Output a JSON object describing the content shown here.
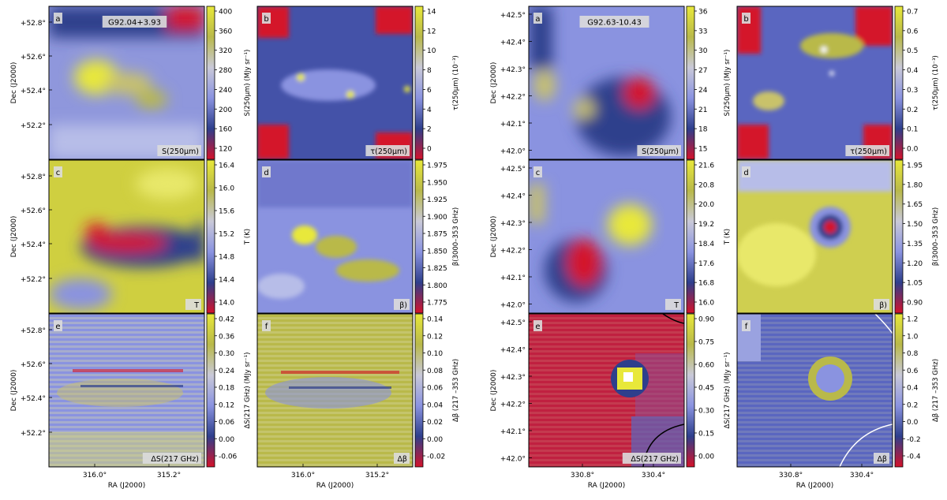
{
  "figure": {
    "groups": [
      {
        "title": "G92.04+3.93",
        "xlabel": "RA (J2000)",
        "ylabel": "Dec (J2000)",
        "xticks": [
          "316.0°",
          "315.2°"
        ],
        "yticks": [
          "+52.8°",
          "+52.6°",
          "+52.4°",
          "+52.2°"
        ]
      },
      {
        "title": "G92.63-10.43",
        "xlabel": "RA (J2000)",
        "ylabel": "Dec (J2000)",
        "xticks": [
          "330.8°",
          "330.4°"
        ],
        "yticks": [
          "+42.5°",
          "+42.4°",
          "+42.3°",
          "+42.2°",
          "+42.1°",
          "+42.0°"
        ]
      }
    ]
  },
  "chart_data": [
    {
      "type": "heatmap",
      "group": 0,
      "panel_letter": "a",
      "map_label": "S(250μm)",
      "colorbar_label": "S(250μm) (MJy sr⁻¹)",
      "colorbar_ticks": [
        "400",
        "360",
        "320",
        "280",
        "240",
        "200",
        "160",
        "120"
      ],
      "colormap": [
        "#d4122a",
        "#2e3f8c",
        "#8a93e0",
        "#c9c9d8",
        "#b9b94a",
        "#e8e83a"
      ]
    },
    {
      "type": "heatmap",
      "group": 0,
      "panel_letter": "b",
      "map_label": "τ(250μm)",
      "colorbar_label": "τ(250μm) (10⁻³)",
      "colorbar_ticks": [
        "14",
        "12",
        "10",
        "8",
        "6",
        "4",
        "2",
        "0"
      ],
      "colormap": [
        "#d4122a",
        "#2e3f8c",
        "#8a93e0",
        "#c9c9d8",
        "#b9b94a",
        "#e8e83a"
      ]
    },
    {
      "type": "heatmap",
      "group": 0,
      "panel_letter": "c",
      "map_label": "T",
      "colorbar_label": "T (K)",
      "colorbar_ticks": [
        "16.4",
        "16.0",
        "15.6",
        "15.2",
        "14.8",
        "14.4",
        "14.0"
      ],
      "colormap": [
        "#d4122a",
        "#2e3f8c",
        "#8a93e0",
        "#c9c9d8",
        "#b9b94a",
        "#e8e83a"
      ]
    },
    {
      "type": "heatmap",
      "group": 0,
      "panel_letter": "d",
      "map_label": "β)",
      "colorbar_label": "β(3000–353 GHz)",
      "colorbar_ticks": [
        "1.975",
        "1.950",
        "1.925",
        "1.900",
        "1.875",
        "1.850",
        "1.825",
        "1.800",
        "1.775"
      ],
      "colormap": [
        "#d4122a",
        "#2e3f8c",
        "#8a93e0",
        "#c9c9d8",
        "#b9b94a",
        "#e8e83a"
      ]
    },
    {
      "type": "heatmap",
      "group": 0,
      "panel_letter": "e",
      "map_label": "ΔS(217 GHz)",
      "colorbar_label": "ΔS(217 GHz) (MJy sr⁻¹)",
      "colorbar_ticks": [
        "0.42",
        "0.36",
        "0.30",
        "0.24",
        "0.18",
        "0.12",
        "0.06",
        "0.00",
        "-0.06"
      ],
      "colormap": [
        "#d4122a",
        "#2e3f8c",
        "#8a93e0",
        "#c9c9d8",
        "#b9b94a",
        "#e8e83a"
      ]
    },
    {
      "type": "heatmap",
      "group": 0,
      "panel_letter": "f",
      "map_label": "Δβ",
      "colorbar_label": "Δβ (217 –353 GHz)",
      "colorbar_ticks": [
        "0.14",
        "0.12",
        "0.10",
        "0.08",
        "0.06",
        "0.04",
        "0.02",
        "0.00",
        "-0.02"
      ],
      "colormap": [
        "#d4122a",
        "#2e3f8c",
        "#8a93e0",
        "#c9c9d8",
        "#b9b94a",
        "#e8e83a"
      ]
    },
    {
      "type": "heatmap",
      "group": 1,
      "panel_letter": "a",
      "map_label": "S(250μm)",
      "colorbar_label": "S(250μm) (MJy sr⁻¹)",
      "colorbar_ticks": [
        "36",
        "33",
        "30",
        "27",
        "24",
        "21",
        "18",
        "15"
      ],
      "colormap": [
        "#d4122a",
        "#2e3f8c",
        "#8a93e0",
        "#c9c9d8",
        "#b9b94a",
        "#e8e83a"
      ]
    },
    {
      "type": "heatmap",
      "group": 1,
      "panel_letter": "b",
      "map_label": "τ(250μm)",
      "colorbar_label": "τ(250μm) (10⁻³)",
      "colorbar_ticks": [
        "0.7",
        "0.6",
        "0.5",
        "0.4",
        "0.3",
        "0.2",
        "0.1",
        "0.0"
      ],
      "colormap": [
        "#d4122a",
        "#2e3f8c",
        "#8a93e0",
        "#c9c9d8",
        "#b9b94a",
        "#e8e83a"
      ]
    },
    {
      "type": "heatmap",
      "group": 1,
      "panel_letter": "c",
      "map_label": "T",
      "colorbar_label": "T (K)",
      "colorbar_ticks": [
        "21.6",
        "20.8",
        "20.0",
        "19.2",
        "18.4",
        "17.6",
        "16.8",
        "16.0"
      ],
      "colormap": [
        "#d4122a",
        "#2e3f8c",
        "#8a93e0",
        "#c9c9d8",
        "#b9b94a",
        "#e8e83a"
      ]
    },
    {
      "type": "heatmap",
      "group": 1,
      "panel_letter": "d",
      "map_label": "β)",
      "colorbar_label": "β(3000–353 GHz)",
      "colorbar_ticks": [
        "1.95",
        "1.80",
        "1.65",
        "1.50",
        "1.35",
        "1.20",
        "1.05",
        "0.90"
      ],
      "colormap": [
        "#d4122a",
        "#2e3f8c",
        "#8a93e0",
        "#c9c9d8",
        "#b9b94a",
        "#e8e83a"
      ]
    },
    {
      "type": "heatmap",
      "group": 1,
      "panel_letter": "e",
      "map_label": "ΔS(217 GHz)",
      "colorbar_label": "ΔS(217 GHz) (MJy sr⁻¹)",
      "colorbar_ticks": [
        "0.90",
        "0.75",
        "0.60",
        "0.45",
        "0.30",
        "0.15",
        "0.00"
      ],
      "colormap": [
        "#d4122a",
        "#2e3f8c",
        "#8a93e0",
        "#c9c9d8",
        "#b9b94a",
        "#e8e83a"
      ]
    },
    {
      "type": "heatmap",
      "group": 1,
      "panel_letter": "f",
      "map_label": "Δβ",
      "colorbar_label": "Δβ (217 –353 GHz)",
      "colorbar_ticks": [
        "1.2",
        "1.0",
        "0.8",
        "0.6",
        "0.4",
        "0.2",
        "0.0",
        "-0.2",
        "-0.4"
      ],
      "colormap": [
        "#d4122a",
        "#2e3f8c",
        "#8a93e0",
        "#c9c9d8",
        "#b9b94a",
        "#e8e83a"
      ]
    }
  ]
}
